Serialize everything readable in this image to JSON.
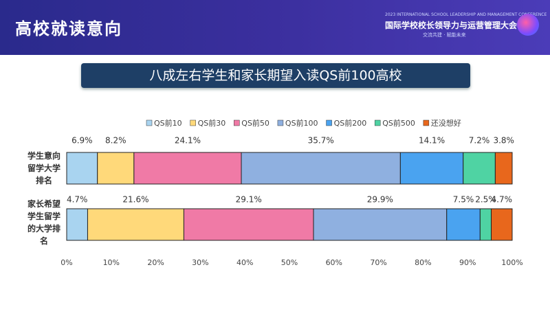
{
  "header": {
    "title": "高校就读意向",
    "conference_en": "2023 INTERNATIONAL SCHOOL LEADERSHIP AND MANAGEMENT CONFERENCE",
    "conference_cn": "国际学校校长领导力与运营管理大会",
    "slogan": "交流共建 · 赋能未来"
  },
  "chart_data": {
    "type": "stacked-hbar",
    "title": "八成左右学生和家长期望入读QS前100高校",
    "categories": [
      "学生意向留学大学排名",
      "家长希望学生留学的大学排名"
    ],
    "series": [
      {
        "name": "QS前10",
        "color": "#a9d4f0",
        "values": [
          6.9,
          4.7
        ],
        "value_labels": [
          "6.9%",
          "4.7%"
        ]
      },
      {
        "name": "QS前30",
        "color": "#ffd97a",
        "values": [
          8.2,
          21.6
        ],
        "value_labels": [
          "8.2%",
          "21.6%"
        ]
      },
      {
        "name": "QS前50",
        "color": "#f07aa6",
        "values": [
          24.1,
          29.1
        ],
        "value_labels": [
          "24.1%",
          "29.1%"
        ]
      },
      {
        "name": "QS前100",
        "color": "#8fb0e0",
        "values": [
          35.7,
          29.9
        ],
        "value_labels": [
          "35.7%",
          "29.9%"
        ]
      },
      {
        "name": "QS前200",
        "color": "#4aa3f0",
        "values": [
          14.1,
          7.5
        ],
        "value_labels": [
          "14.1%",
          "7.5%"
        ]
      },
      {
        "name": "QS前500",
        "color": "#4fd3a3",
        "values": [
          7.2,
          2.5
        ],
        "value_labels": [
          "7.2%",
          "2.5%"
        ]
      },
      {
        "name": "还没想好",
        "color": "#e8671c",
        "values": [
          3.8,
          4.7
        ],
        "value_labels": [
          "3.8%",
          "4.7%"
        ]
      }
    ],
    "xlim": [
      0,
      100
    ],
    "xticks": [
      {
        "value": 0,
        "label": "0%"
      },
      {
        "value": 10,
        "label": "10%"
      },
      {
        "value": 20,
        "label": "20%"
      },
      {
        "value": 30,
        "label": "30%"
      },
      {
        "value": 40,
        "label": "40%"
      },
      {
        "value": 50,
        "label": "50%"
      },
      {
        "value": 60,
        "label": "60%"
      },
      {
        "value": 70,
        "label": "70%"
      },
      {
        "value": 80,
        "label": "80%"
      },
      {
        "value": 90,
        "label": "90%"
      },
      {
        "value": 100,
        "label": "100%"
      }
    ],
    "legend": "top"
  }
}
